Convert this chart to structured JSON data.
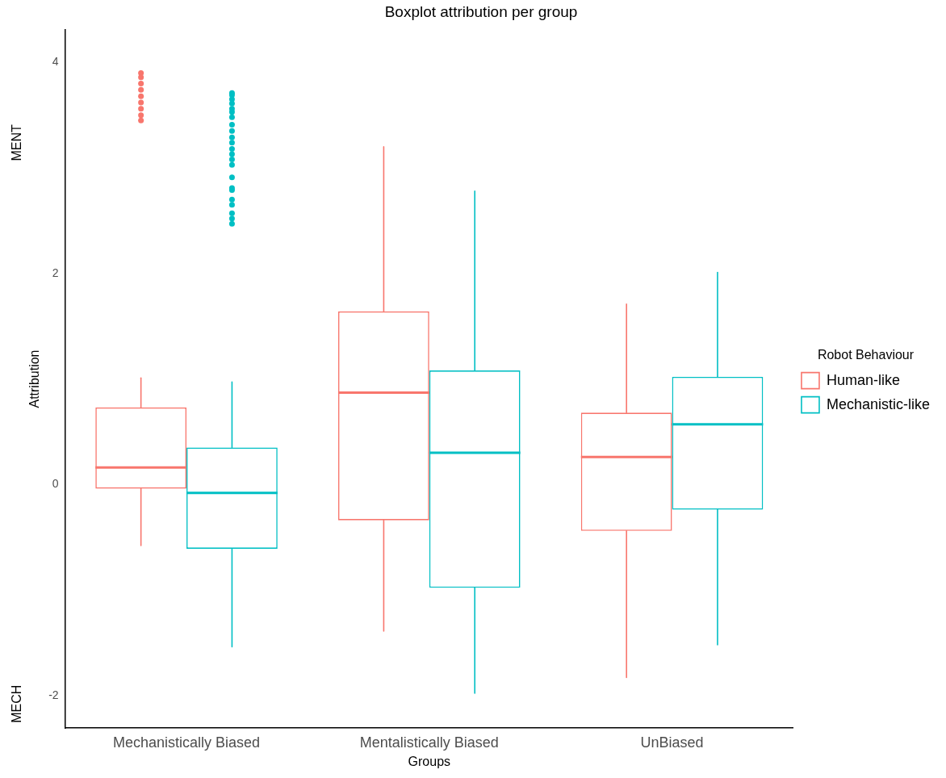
{
  "chart_data": {
    "type": "box",
    "title": "Boxplot attribution per group",
    "xlabel": "Groups",
    "ylabel": "Attribution",
    "legend_title": "Robot Behaviour",
    "annotations": [
      "MENT",
      "MECH"
    ],
    "categories": [
      "Mechanistically Biased",
      "Mentalistically Biased",
      "UnBiased"
    ],
    "ylim": [
      -2.31,
      4.31
    ],
    "yticks": [
      -2,
      0,
      2,
      4
    ],
    "grid": false,
    "legend": "right",
    "series": [
      {
        "name": "Human-like",
        "color": "#f8766d",
        "boxes": [
          {
            "low": -0.58,
            "q1": -0.04,
            "median": 0.16,
            "q3": 0.73,
            "high": 1.01,
            "outliers": [
              3.9,
              3.86,
              3.8,
              3.74,
              3.68,
              3.62,
              3.56,
              3.5,
              3.45
            ]
          },
          {
            "low": -1.39,
            "q1": -0.34,
            "median": 0.87,
            "q3": 1.64,
            "high": 3.2
          },
          {
            "low": -1.83,
            "q1": -0.44,
            "median": 0.26,
            "q3": 0.68,
            "high": 1.71
          }
        ]
      },
      {
        "name": "Mechanistic-like",
        "color": "#00bfc4",
        "boxes": [
          {
            "low": -1.54,
            "q1": -0.61,
            "median": -0.08,
            "q3": 0.35,
            "high": 0.97,
            "outliers": [
              3.71,
              3.69,
              3.65,
              3.61,
              3.56,
              3.53,
              3.48,
              3.41,
              3.35,
              3.29,
              3.24,
              3.18,
              3.13,
              3.08,
              3.03,
              2.91,
              2.81,
              2.79,
              2.7,
              2.65,
              2.57,
              2.52,
              2.47
            ]
          },
          {
            "low": -1.98,
            "q1": -0.98,
            "median": 0.3,
            "q3": 1.08,
            "high": 2.78
          },
          {
            "low": -1.52,
            "q1": -0.24,
            "median": 0.57,
            "q3": 1.02,
            "high": 2.01
          }
        ]
      }
    ]
  }
}
